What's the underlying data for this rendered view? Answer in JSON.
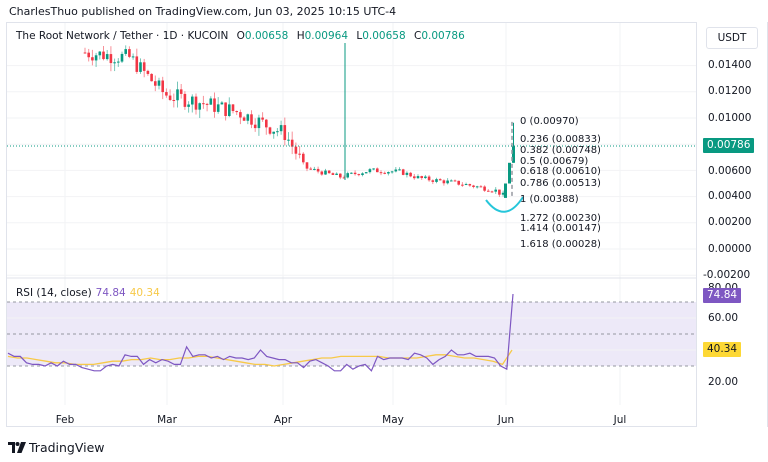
{
  "header": {
    "published": "CharlesThuo published on TradingView.com, Jun 03, 2025 10:15 UTC-4"
  },
  "legend": {
    "symbol": "The Root Network / Tether · 1D · KUCOIN",
    "o_label": "O",
    "o_value": "0.00658",
    "h_label": "H",
    "h_value": "0.00964",
    "l_label": "L",
    "l_value": "0.00658",
    "c_label": "C",
    "c_value": "0.00786"
  },
  "price_axis": {
    "currency": "USDT",
    "ticks": [
      "0.01400",
      "0.01200",
      "0.01000",
      "0.00600",
      "0.00400",
      "0.00200",
      "0.00000",
      "-0.00200"
    ],
    "last_price_badge": "0.00786"
  },
  "rsi": {
    "label": "RSI (14, close)",
    "rsi_value": "74.84",
    "ma_value": "40.34",
    "ticks": [
      "80.00",
      "60.00",
      "20.00"
    ]
  },
  "fib_levels": [
    {
      "text": "0 (0.00970)",
      "color": "#787b86"
    },
    {
      "text": "0.236 (0.00833)",
      "color": "#f23645"
    },
    {
      "text": "0.382 (0.00748)",
      "color": "#ff9800"
    },
    {
      "text": "0.5 (0.00679)",
      "color": "#4caf50"
    },
    {
      "text": "0.618 (0.00610)",
      "color": "#089981"
    },
    {
      "text": "0.786 (0.00513)",
      "color": "#00bcd4"
    },
    {
      "text": "1 (0.00388)",
      "color": "#787b86"
    },
    {
      "text": "1.272 (0.00230)",
      "color": "#ff9800"
    },
    {
      "text": "1.414 (0.00147)",
      "color": "#f23645"
    },
    {
      "text": "1.618 (0.00028)",
      "color": "#2962ff"
    }
  ],
  "time_axis": [
    "Feb",
    "Mar",
    "Apr",
    "May",
    "Jun",
    "Jul"
  ],
  "brand": {
    "name": "TradingView"
  },
  "colors": {
    "up": "#089981",
    "down": "#f23645",
    "rsi_line": "#7e57c2",
    "rsi_ma": "#f7c948",
    "rsi_band": "#ede9f8",
    "arc": "#26c6da"
  },
  "chart_data": [
    {
      "type": "candlestick",
      "title": "The Root Network / Tether · 1D · KUCOIN",
      "xlabel": "",
      "ylabel": "USDT",
      "x_ticks": [
        "Feb",
        "Mar",
        "Apr",
        "May",
        "Jun",
        "Jul"
      ],
      "ylim": [
        -0.0022,
        0.0155
      ],
      "y_ticks": [
        -0.002,
        0.0,
        0.002,
        0.004,
        0.006,
        0.01,
        0.012,
        0.014
      ],
      "last_candle": {
        "open": 0.00658,
        "high": 0.00964,
        "low": 0.00658,
        "close": 0.00786
      },
      "approx_closes_by_month": [
        {
          "period": "late Jan",
          "close": 0.015
        },
        {
          "period": "early Feb",
          "close": 0.0145
        },
        {
          "period": "early Mar",
          "close": 0.0118
        },
        {
          "period": "mid Mar",
          "close": 0.0108
        },
        {
          "period": "early Apr",
          "close": 0.0086
        },
        {
          "period": "mid Apr",
          "close": 0.0055
        },
        {
          "period": "late Apr",
          "close": 0.006
        },
        {
          "period": "early May",
          "close": 0.0057
        },
        {
          "period": "mid May",
          "close": 0.005
        },
        {
          "period": "late May",
          "close": 0.004
        },
        {
          "period": "Jun 03",
          "close": 0.00786
        }
      ],
      "fibonacci": [
        {
          "level": 0,
          "price": 0.0097
        },
        {
          "level": 0.236,
          "price": 0.00833
        },
        {
          "level": 0.382,
          "price": 0.00748
        },
        {
          "level": 0.5,
          "price": 0.00679
        },
        {
          "level": 0.618,
          "price": 0.0061
        },
        {
          "level": 0.786,
          "price": 0.00513
        },
        {
          "level": 1,
          "price": 0.00388
        },
        {
          "level": 1.272,
          "price": 0.0023
        },
        {
          "level": 1.414,
          "price": 0.00147
        },
        {
          "level": 1.618,
          "price": 0.00028
        }
      ],
      "annotations": [
        "Rounded-bottom arc under late-May low",
        "Current price line at 0.00786"
      ]
    },
    {
      "type": "line",
      "title": "RSI (14, close)",
      "ylim": [
        15,
        82
      ],
      "y_ticks": [
        20,
        60,
        80
      ],
      "bands": {
        "upper": 70,
        "middle": 50,
        "lower": 30
      },
      "series": [
        {
          "name": "RSI",
          "last": 74.84,
          "values": [
            38,
            36,
            36,
            32,
            31,
            31,
            30,
            32,
            30,
            33,
            31,
            31,
            29,
            28,
            27,
            27,
            30,
            31,
            30,
            37,
            36,
            36,
            31,
            34,
            32,
            34,
            33,
            31,
            31,
            42,
            36,
            37,
            37,
            35,
            36,
            34,
            36,
            35,
            35,
            34,
            35,
            40,
            36,
            35,
            34,
            34,
            32,
            32,
            29,
            33,
            34,
            32,
            30,
            27,
            27,
            31,
            28,
            30,
            31,
            27,
            36,
            34,
            35,
            35,
            35,
            34,
            38,
            37,
            35,
            31,
            34,
            36,
            40,
            37,
            37,
            38,
            36,
            36,
            36,
            35,
            30,
            28,
            75
          ]
        },
        {
          "name": "RSI-based MA",
          "last": 40.34,
          "values": [
            36,
            35,
            35,
            34,
            33,
            32,
            32,
            31,
            31,
            31,
            32,
            33,
            33,
            34,
            34,
            35,
            34,
            34,
            35,
            35,
            36,
            36,
            35,
            34,
            33,
            32,
            31,
            31,
            30,
            31,
            32,
            33,
            34,
            35,
            35,
            36,
            36,
            36,
            36,
            36,
            35,
            35,
            35,
            35,
            36,
            37,
            37,
            36,
            35,
            35,
            34,
            33,
            31,
            40
          ]
        }
      ]
    }
  ]
}
